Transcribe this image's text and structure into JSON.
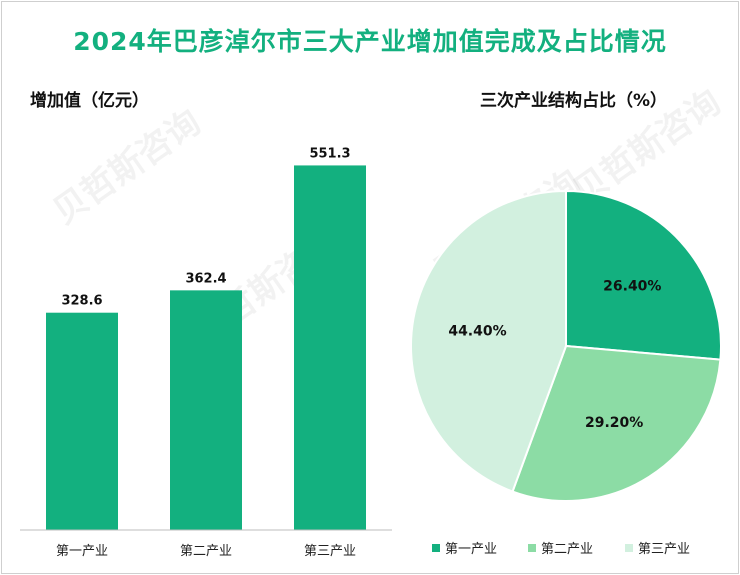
{
  "title": "2024年巴彦淖尔市三大产业增加值完成及占比情况",
  "bar_chart_title": "增加值（亿元）",
  "pie_chart_title": "三次产业结构占比（%）",
  "colors": {
    "title": "#13b07f",
    "primary": "#13b07f",
    "secondary": "#8cdca5",
    "tertiary": "#d2f0df"
  },
  "chart_data": [
    {
      "type": "bar",
      "title": "增加值（亿元）",
      "categories": [
        "第一产业",
        "第二产业",
        "第三产业"
      ],
      "values": [
        328.6,
        362.4,
        551.3
      ],
      "value_labels": [
        "328.6",
        "362.4",
        "551.3"
      ],
      "ylim": [
        0,
        620
      ],
      "grid": false
    },
    {
      "type": "pie",
      "title": "三次产业结构占比（%）",
      "categories": [
        "第一产业",
        "第二产业",
        "第三产业"
      ],
      "values": [
        26.4,
        29.2,
        44.4
      ],
      "value_labels": [
        "26.40%",
        "29.20%",
        "44.40%"
      ],
      "legend": "bottom"
    }
  ]
}
